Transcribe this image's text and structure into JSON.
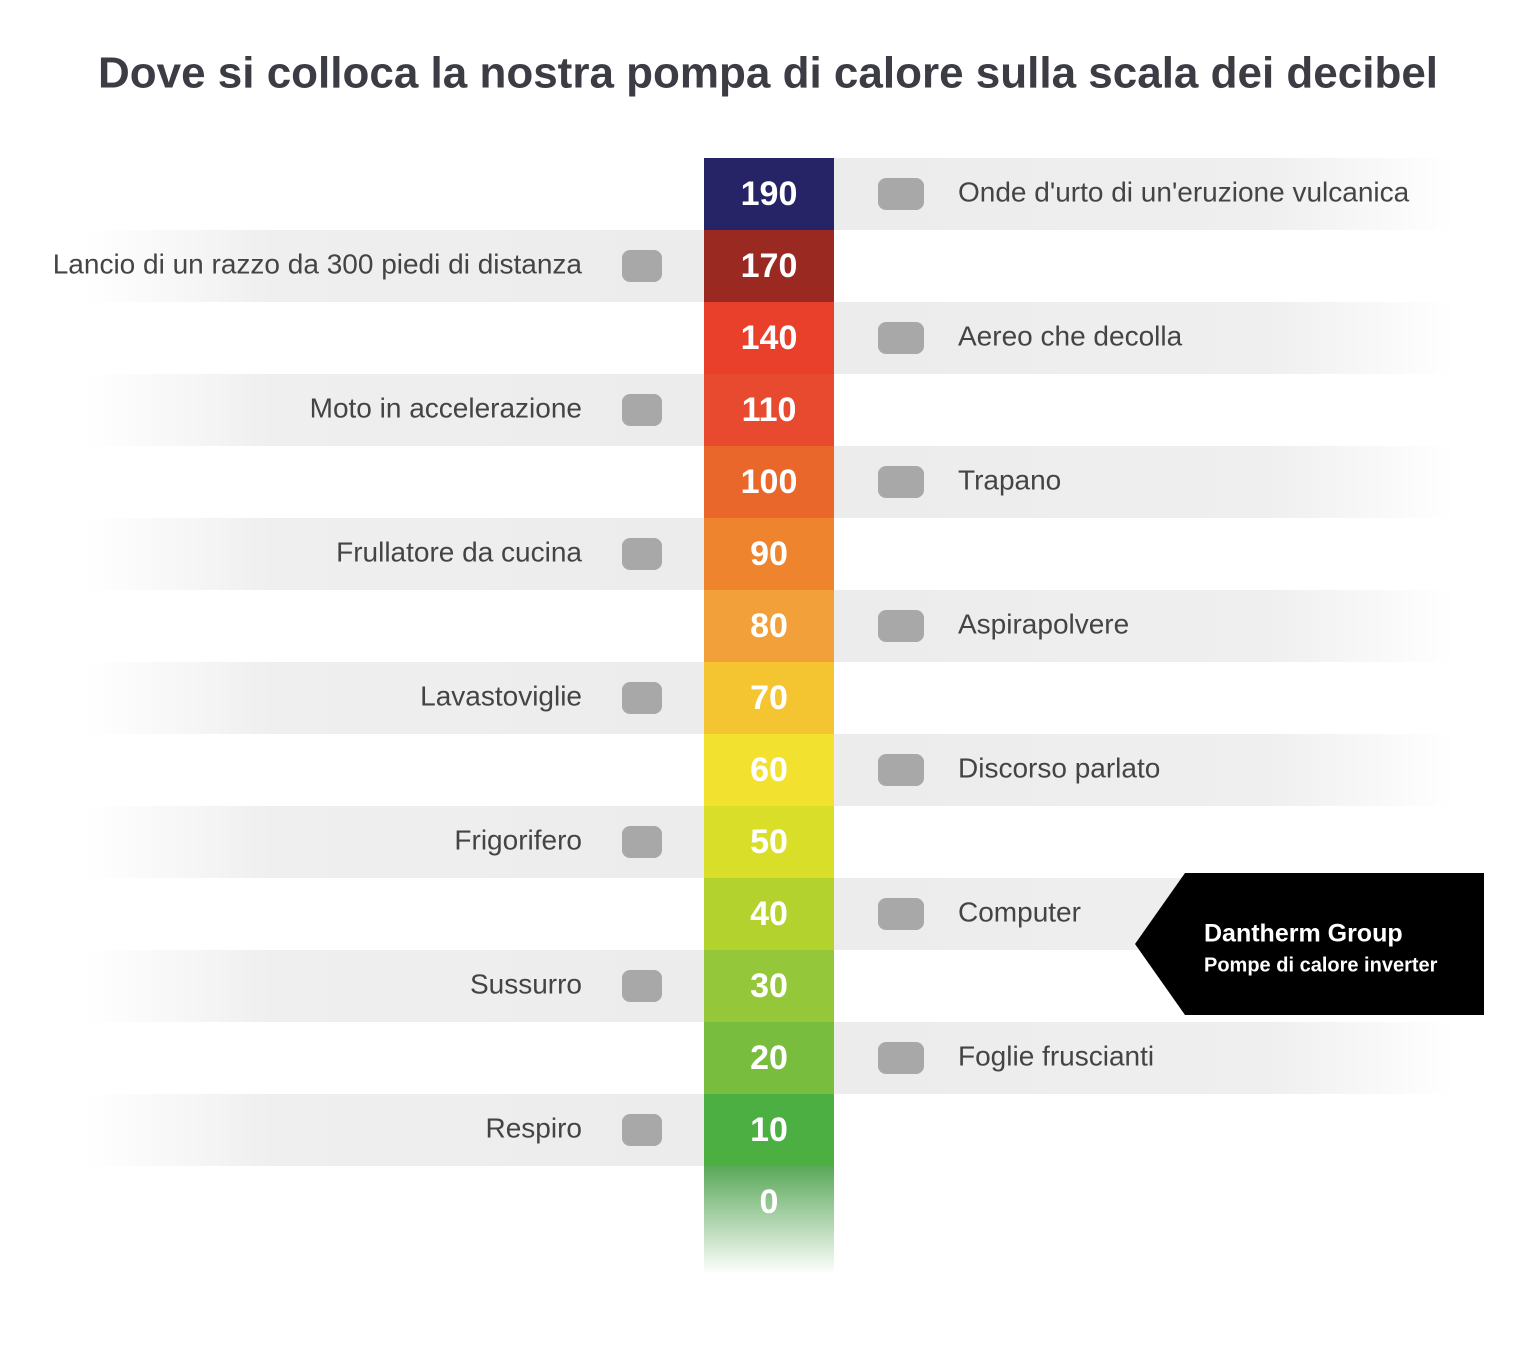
{
  "title": "Dove si colloca la nostra pompa di calore sulla scala dei decibel",
  "levels": [
    {
      "value": 190,
      "label": "Onde d'urto di un'eruzione vulcanica",
      "side": "right",
      "color": "#262466"
    },
    {
      "value": 170,
      "label": "Lancio di un razzo da 300 piedi di distanza",
      "side": "left",
      "color": "#9a2a21"
    },
    {
      "value": 140,
      "label": "Aereo che decolla",
      "side": "right",
      "color": "#e8402b"
    },
    {
      "value": 110,
      "label": "Moto in accelerazione",
      "side": "left",
      "color": "#e84a2f"
    },
    {
      "value": 100,
      "label": "Trapano",
      "side": "right",
      "color": "#e9672b"
    },
    {
      "value": 90,
      "label": "Frullatore da cucina",
      "side": "left",
      "color": "#ee842d"
    },
    {
      "value": 80,
      "label": "Aspirapolvere",
      "side": "right",
      "color": "#f2a03a"
    },
    {
      "value": 70,
      "label": "Lavastoviglie",
      "side": "left",
      "color": "#f5c531"
    },
    {
      "value": 60,
      "label": "Discorso parlato",
      "side": "right",
      "color": "#f2e12e"
    },
    {
      "value": 50,
      "label": "Frigorifero",
      "side": "left",
      "color": "#d9df29"
    },
    {
      "value": 40,
      "label": "Computer",
      "side": "right",
      "color": "#b3d22d"
    },
    {
      "value": 30,
      "label": "Sussurro",
      "side": "left",
      "color": "#95c73a"
    },
    {
      "value": 20,
      "label": "Foglie fruscianti",
      "side": "right",
      "color": "#78bd3d"
    },
    {
      "value": 10,
      "label": "Respiro",
      "side": "left",
      "color": "#4caf42"
    },
    {
      "value": 0,
      "color": "#5aa859"
    }
  ],
  "callout": {
    "title": "Dantherm Group",
    "subtitle": "Pompe di calore inverter"
  }
}
